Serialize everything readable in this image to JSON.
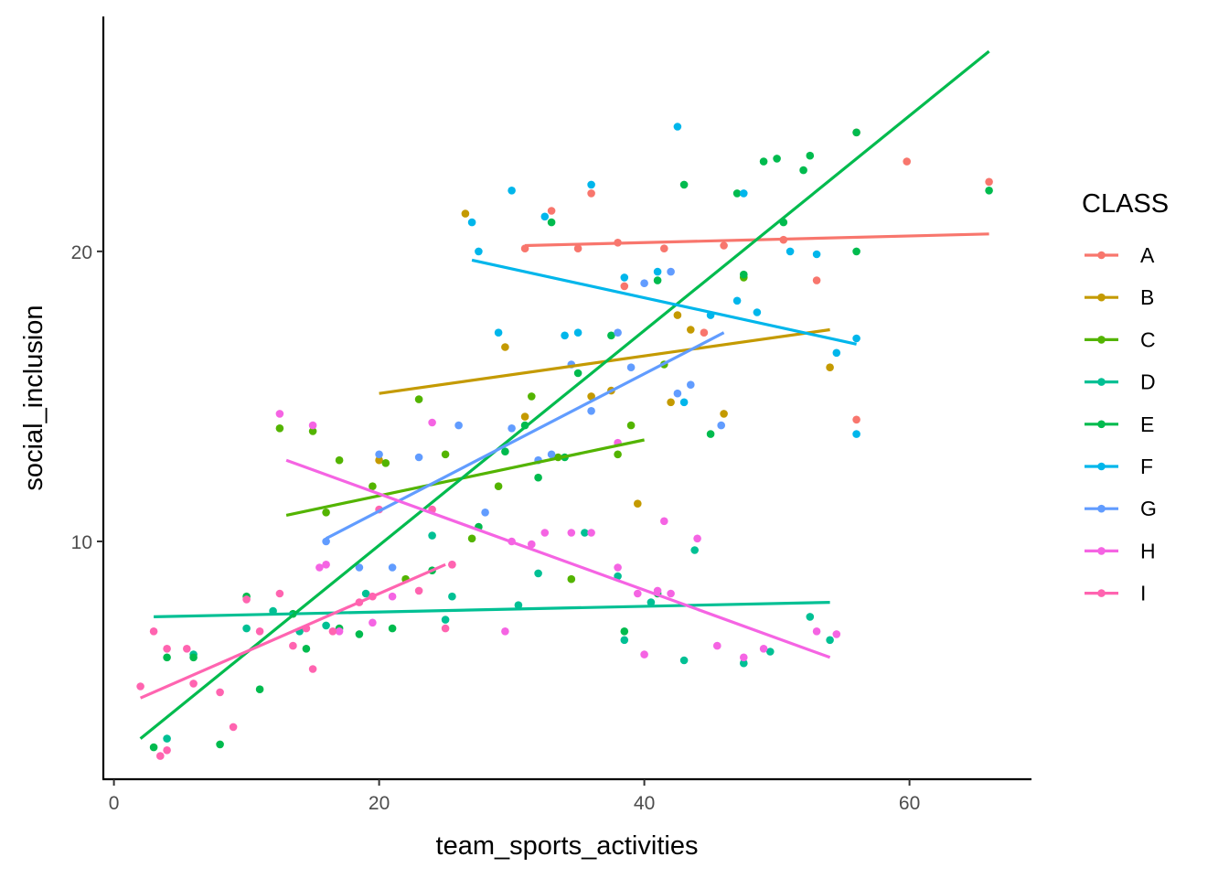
{
  "chart_data": {
    "type": "scatter",
    "xlabel": "team_sports_activities",
    "ylabel": "social_inclusion",
    "xlim": [
      -0.8,
      69.2
    ],
    "ylim": [
      1.8,
      28.1
    ],
    "x_ticks": [
      0,
      20,
      40,
      60
    ],
    "y_ticks": [
      10,
      20
    ],
    "grid": false,
    "legend": {
      "title": "CLASS",
      "placement": "right",
      "entries": [
        "A",
        "B",
        "C",
        "D",
        "E",
        "F",
        "G",
        "H",
        "I"
      ]
    },
    "series": [
      {
        "name": "A",
        "color": "#F8766D",
        "fit": {
          "x1": 31,
          "y1": 20.2,
          "x2": 66,
          "y2": 20.6
        },
        "points": [
          [
            31,
            20.1
          ],
          [
            35,
            20.1
          ],
          [
            38,
            20.3
          ],
          [
            41.5,
            20.1
          ],
          [
            46,
            20.2
          ],
          [
            50.5,
            20.4
          ],
          [
            56,
            24.1
          ],
          [
            59.8,
            23.1
          ],
          [
            66,
            22.4
          ],
          [
            38.5,
            18.8
          ],
          [
            44.5,
            17.2
          ],
          [
            53,
            19.0
          ],
          [
            56,
            14.2
          ],
          [
            36,
            22.0
          ],
          [
            33,
            21.4
          ]
        ]
      },
      {
        "name": "B",
        "color": "#C49A00",
        "fit": {
          "x1": 20,
          "y1": 15.1,
          "x2": 54,
          "y2": 17.3
        },
        "points": [
          [
            26.5,
            21.3
          ],
          [
            29.5,
            16.7
          ],
          [
            31,
            14.3
          ],
          [
            37.5,
            15.2
          ],
          [
            39.5,
            11.3
          ],
          [
            42,
            14.8
          ],
          [
            43.5,
            17.3
          ],
          [
            46,
            14.4
          ],
          [
            54,
            16.0
          ],
          [
            20,
            12.8
          ],
          [
            36,
            15.0
          ],
          [
            42.5,
            17.8
          ]
        ]
      },
      {
        "name": "C",
        "color": "#53B400",
        "fit": {
          "x1": 13,
          "y1": 10.9,
          "x2": 40,
          "y2": 13.5
        },
        "points": [
          [
            12.5,
            13.9
          ],
          [
            15,
            13.8
          ],
          [
            16,
            11.0
          ],
          [
            17,
            12.8
          ],
          [
            19.5,
            11.9
          ],
          [
            20.5,
            12.7
          ],
          [
            22,
            8.7
          ],
          [
            23,
            14.9
          ],
          [
            25,
            13.0
          ],
          [
            27,
            10.1
          ],
          [
            29,
            11.9
          ],
          [
            31.5,
            15.0
          ],
          [
            33.5,
            12.9
          ],
          [
            34.5,
            8.7
          ],
          [
            38,
            13.0
          ],
          [
            39,
            14.0
          ],
          [
            41.5,
            16.1
          ],
          [
            47.5,
            19.1
          ]
        ]
      },
      {
        "name": "D",
        "color": "#00C094",
        "fit": {
          "x1": 3,
          "y1": 7.4,
          "x2": 54,
          "y2": 7.9
        },
        "points": [
          [
            4,
            3.2
          ],
          [
            6,
            6.1
          ],
          [
            10,
            7.0
          ],
          [
            12,
            7.6
          ],
          [
            14,
            6.9
          ],
          [
            16,
            7.1
          ],
          [
            19,
            8.2
          ],
          [
            24,
            10.2
          ],
          [
            25.5,
            8.1
          ],
          [
            25,
            7.3
          ],
          [
            30.5,
            7.8
          ],
          [
            32,
            8.9
          ],
          [
            35.5,
            10.3
          ],
          [
            38,
            8.8
          ],
          [
            38.5,
            6.6
          ],
          [
            40.5,
            7.9
          ],
          [
            43,
            5.9
          ],
          [
            43.8,
            9.7
          ],
          [
            47.5,
            5.8
          ],
          [
            49.5,
            6.2
          ],
          [
            52.5,
            7.4
          ],
          [
            54,
            6.6
          ]
        ]
      },
      {
        "name": "E",
        "color": "#00BB4E",
        "fit": {
          "x1": 2,
          "y1": 3.2,
          "x2": 66,
          "y2": 26.9
        },
        "points": [
          [
            3,
            2.9
          ],
          [
            4,
            6.0
          ],
          [
            6,
            6.0
          ],
          [
            8,
            3.0
          ],
          [
            10,
            8.1
          ],
          [
            11,
            4.9
          ],
          [
            13.5,
            7.5
          ],
          [
            14.5,
            6.3
          ],
          [
            17,
            7.0
          ],
          [
            18.5,
            6.8
          ],
          [
            21,
            7.0
          ],
          [
            24,
            9.0
          ],
          [
            27.5,
            10.5
          ],
          [
            29.5,
            13.1
          ],
          [
            31,
            14.0
          ],
          [
            32,
            12.2
          ],
          [
            33,
            21.0
          ],
          [
            34,
            12.9
          ],
          [
            35,
            15.8
          ],
          [
            37.5,
            17.1
          ],
          [
            38.5,
            6.9
          ],
          [
            41,
            19.0
          ],
          [
            43,
            22.3
          ],
          [
            45,
            13.7
          ],
          [
            47,
            22.0
          ],
          [
            49,
            23.1
          ],
          [
            50.5,
            21.0
          ],
          [
            52,
            22.8
          ],
          [
            52.5,
            23.3
          ],
          [
            56,
            24.1
          ],
          [
            56,
            20.0
          ],
          [
            66,
            22.1
          ],
          [
            41,
            8.2
          ],
          [
            47.5,
            19.2
          ],
          [
            50,
            23.2
          ]
        ]
      },
      {
        "name": "F",
        "color": "#00B6EB",
        "fit": {
          "x1": 27,
          "y1": 19.7,
          "x2": 56,
          "y2": 16.8
        },
        "points": [
          [
            27,
            21.0
          ],
          [
            27.5,
            20.0
          ],
          [
            29,
            17.2
          ],
          [
            30,
            22.1
          ],
          [
            32.5,
            21.2
          ],
          [
            34,
            17.1
          ],
          [
            35,
            17.2
          ],
          [
            36,
            22.3
          ],
          [
            38.5,
            19.1
          ],
          [
            41,
            19.3
          ],
          [
            42.5,
            24.3
          ],
          [
            43,
            14.8
          ],
          [
            45,
            17.8
          ],
          [
            47,
            18.3
          ],
          [
            47.5,
            22.0
          ],
          [
            48.5,
            17.9
          ],
          [
            51,
            20.0
          ],
          [
            53,
            19.9
          ],
          [
            54.5,
            16.5
          ],
          [
            56,
            13.7
          ],
          [
            56,
            17.0
          ]
        ]
      },
      {
        "name": "G",
        "color": "#619CFF",
        "fit": {
          "x1": 16,
          "y1": 10.1,
          "x2": 46,
          "y2": 17.2
        },
        "points": [
          [
            16,
            10.0
          ],
          [
            18.5,
            9.1
          ],
          [
            20,
            13.0
          ],
          [
            21,
            9.1
          ],
          [
            23,
            12.9
          ],
          [
            26,
            14.0
          ],
          [
            28,
            11.0
          ],
          [
            30,
            13.9
          ],
          [
            32,
            12.8
          ],
          [
            33,
            13.0
          ],
          [
            34.5,
            16.1
          ],
          [
            36,
            14.5
          ],
          [
            38,
            17.2
          ],
          [
            39,
            16.0
          ],
          [
            40,
            18.9
          ],
          [
            42,
            19.3
          ],
          [
            42.5,
            15.1
          ],
          [
            43.5,
            15.4
          ],
          [
            45.8,
            14.0
          ]
        ]
      },
      {
        "name": "H",
        "color": "#F564E3",
        "fit": {
          "x1": 13,
          "y1": 12.8,
          "x2": 54,
          "y2": 6.0
        },
        "points": [
          [
            12.5,
            14.4
          ],
          [
            15,
            14.0
          ],
          [
            15.5,
            9.1
          ],
          [
            17,
            6.9
          ],
          [
            19.5,
            7.2
          ],
          [
            21,
            8.1
          ],
          [
            24,
            14.1
          ],
          [
            25.5,
            9.2
          ],
          [
            29.5,
            6.9
          ],
          [
            30,
            10.0
          ],
          [
            31.5,
            9.9
          ],
          [
            32.5,
            10.3
          ],
          [
            34.5,
            10.3
          ],
          [
            36,
            10.3
          ],
          [
            38,
            9.1
          ],
          [
            39.5,
            8.2
          ],
          [
            40,
            6.1
          ],
          [
            41,
            8.3
          ],
          [
            42,
            8.2
          ],
          [
            44,
            10.1
          ],
          [
            45.5,
            6.4
          ],
          [
            47.5,
            6.0
          ],
          [
            49,
            6.3
          ],
          [
            53,
            6.9
          ],
          [
            54.5,
            6.8
          ],
          [
            41.5,
            10.7
          ],
          [
            38,
            13.4
          ],
          [
            16,
            9.2
          ]
        ]
      },
      {
        "name": "I",
        "color": "#FF64B0",
        "fit": {
          "x1": 2,
          "y1": 4.6,
          "x2": 25,
          "y2": 9.2
        },
        "points": [
          [
            2,
            5.0
          ],
          [
            3,
            6.9
          ],
          [
            3.5,
            2.6
          ],
          [
            4,
            6.3
          ],
          [
            5.5,
            6.3
          ],
          [
            6,
            5.1
          ],
          [
            8,
            4.8
          ],
          [
            9,
            3.6
          ],
          [
            10,
            8.0
          ],
          [
            11,
            6.9
          ],
          [
            12.5,
            8.2
          ],
          [
            13.5,
            6.4
          ],
          [
            14.5,
            7.0
          ],
          [
            15,
            5.6
          ],
          [
            16.5,
            6.9
          ],
          [
            18.5,
            7.9
          ],
          [
            19.5,
            8.1
          ],
          [
            20,
            11.1
          ],
          [
            23,
            8.3
          ],
          [
            24,
            11.1
          ],
          [
            25.5,
            9.2
          ],
          [
            25,
            7.0
          ],
          [
            4,
            2.8
          ]
        ]
      }
    ]
  }
}
